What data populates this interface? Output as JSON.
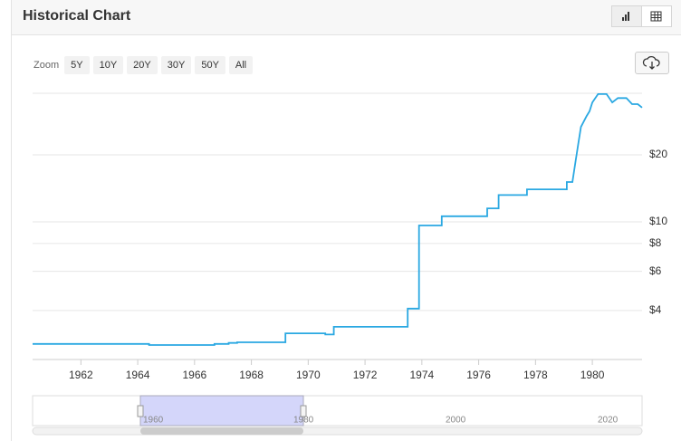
{
  "header": {
    "title": "Historical Chart"
  },
  "zoom": {
    "label": "Zoom",
    "options": [
      "5Y",
      "10Y",
      "20Y",
      "30Y",
      "50Y",
      "All"
    ]
  },
  "chart_data": {
    "type": "line",
    "log_scale": true,
    "grid": true,
    "x": [
      1960.3,
      1964.4,
      1964.4,
      1966.7,
      1966.7,
      1967.2,
      1967.2,
      1967.5,
      1967.5,
      1969.2,
      1969.2,
      1970.6,
      1970.6,
      1970.9,
      1970.9,
      1973.5,
      1973.5,
      1973.9,
      1973.9,
      1974.7,
      1974.7,
      1976.3,
      1976.3,
      1976.7,
      1976.7,
      1977.7,
      1977.7,
      1979.1,
      1979.1,
      1979.3,
      1979.4,
      1979.5,
      1979.6,
      1979.8,
      1979.9,
      1980.0,
      1980.2,
      1980.5,
      1980.7,
      1980.9,
      1981.2,
      1981.4,
      1981.6,
      1981.75
    ],
    "series": [
      {
        "color": "#2aa8e2",
        "values": [
          2.83,
          2.83,
          2.8,
          2.8,
          2.83,
          2.83,
          2.86,
          2.86,
          2.88,
          2.88,
          3.16,
          3.16,
          3.12,
          3.12,
          3.38,
          3.38,
          4.08,
          4.08,
          9.64,
          9.64,
          10.6,
          10.6,
          11.5,
          11.5,
          13.2,
          13.2,
          14.0,
          14.0,
          15.1,
          15.1,
          18.4,
          22.2,
          26.7,
          29.9,
          31.4,
          34.4,
          37.5,
          37.5,
          34.4,
          36.0,
          36.0,
          33.8,
          33.8,
          32.6
        ]
      }
    ],
    "xlim": [
      1960.3,
      1981.75
    ],
    "xticks": [
      1962,
      1964,
      1966,
      1968,
      1970,
      1972,
      1974,
      1976,
      1978,
      1980
    ],
    "ylim": [
      2.41,
      40
    ],
    "yticks": [
      {
        "value": 4,
        "label": "$4"
      },
      {
        "value": 6,
        "label": "$6"
      },
      {
        "value": 8,
        "label": "$8"
      },
      {
        "value": 10,
        "label": "$10"
      },
      {
        "value": 20,
        "label": "$20"
      }
    ]
  },
  "navigator": {
    "labels": [
      "1960",
      "1980",
      "2000",
      "2020"
    ]
  }
}
